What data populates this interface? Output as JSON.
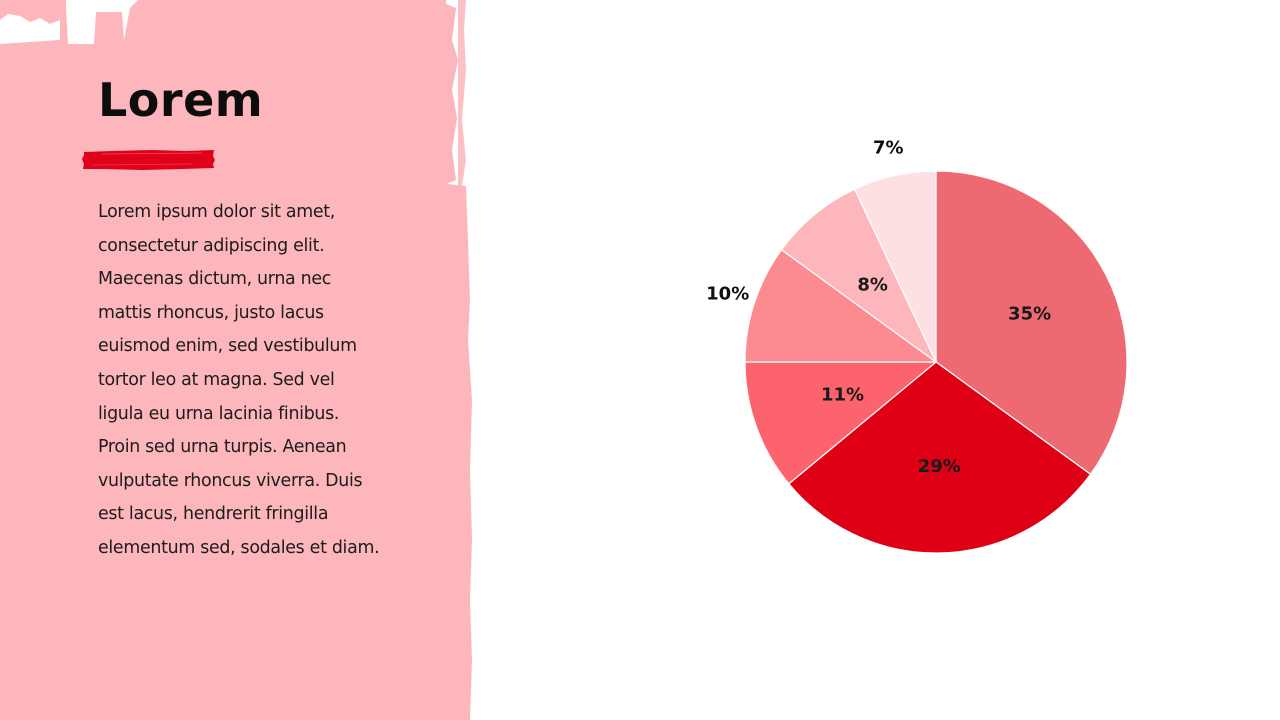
{
  "slide": {
    "title": "Lorem",
    "body": "Lorem ipsum dolor sit amet,\nconsectetur adipiscing elit.\nMaecenas dictum, urna nec\nmattis rhoncus, justo lacus\neuismod enim, sed vestibulum\ntortor leo at magna. Sed vel\nligula eu urna lacinia finibus.\nProin sed urna turpis. Aenean\nvulputate rhoncus viverra. Duis\nest lacus, hendrerit fringilla\nelementum sed, sodales et diam."
  },
  "colors": {
    "panel": "#fdb6bb",
    "accent": "#e0001a",
    "background": "#ffffff"
  },
  "chart_data": {
    "type": "pie",
    "start_angle_deg": 0,
    "direction": "clockwise",
    "slices": [
      {
        "label": "35%",
        "value": 35,
        "color": "#ee6a72",
        "label_position": "inside"
      },
      {
        "label": "29%",
        "value": 29,
        "color": "#e00016",
        "label_position": "inside"
      },
      {
        "label": "11%",
        "value": 11,
        "color": "#fd636d",
        "label_position": "inside"
      },
      {
        "label": "10%",
        "value": 10,
        "color": "#fc8a91",
        "label_position": "outside"
      },
      {
        "label": "8%",
        "value": 8,
        "color": "#fdb6bb",
        "label_position": "inside"
      },
      {
        "label": "7%",
        "value": 7,
        "color": "#fde0e2",
        "label_position": "outside"
      }
    ]
  }
}
